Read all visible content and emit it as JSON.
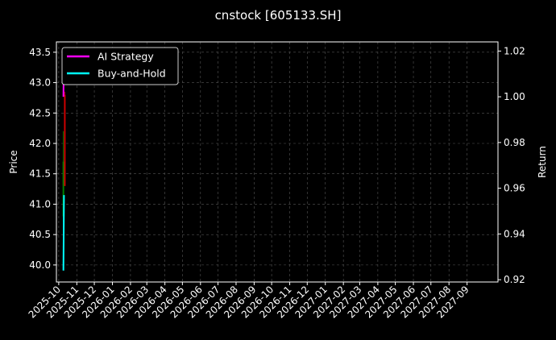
{
  "chart_data": {
    "type": "line",
    "title": "cnstock [605133.SH]",
    "ylabel_left": "Price",
    "ylabel_right": "Return",
    "xlim": [
      "2025-09-27",
      "2027-10-24"
    ],
    "ylim_left": [
      39.72,
      43.67
    ],
    "ylim_right": [
      0.919,
      1.024
    ],
    "grid": true,
    "legend_placement": "top-left",
    "x_ticks": [
      "2025-10",
      "2025-11",
      "2025-12",
      "2026-01",
      "2026-02",
      "2026-03",
      "2026-04",
      "2026-05",
      "2026-06",
      "2026-07",
      "2026-08",
      "2026-09",
      "2026-10",
      "2026-11",
      "2026-12",
      "2027-01",
      "2027-02",
      "2027-03",
      "2027-04",
      "2027-05",
      "2027-06",
      "2027-07",
      "2027-08",
      "2027-09"
    ],
    "y_ticks_left": [
      "40.0",
      "40.5",
      "41.0",
      "41.5",
      "42.0",
      "42.5",
      "43.0",
      "43.5"
    ],
    "y_ticks_right": [
      "0.92",
      "0.94",
      "0.96",
      "0.98",
      "1.00",
      "1.02"
    ],
    "candles": [
      {
        "date": "2025-10-09",
        "open": 40.8,
        "close": 41.7,
        "high": 42.2,
        "low": 40.7,
        "color": "#008000"
      },
      {
        "date": "2025-10-10",
        "open": 42.8,
        "close": 41.3,
        "high": 42.85,
        "low": 41.3,
        "color": "#cc0000"
      }
    ],
    "series": [
      {
        "name": "AI Strategy",
        "color": "#ff00ff",
        "x": [
          "2025-10-09",
          "2025-10-10"
        ],
        "values": [
          1.0,
          1.02
        ]
      },
      {
        "name": "Buy-and-Hold",
        "color": "#00ffff",
        "x": [
          "2025-10-09",
          "2025-10-10"
        ],
        "values": [
          0.924,
          0.957
        ]
      }
    ]
  }
}
